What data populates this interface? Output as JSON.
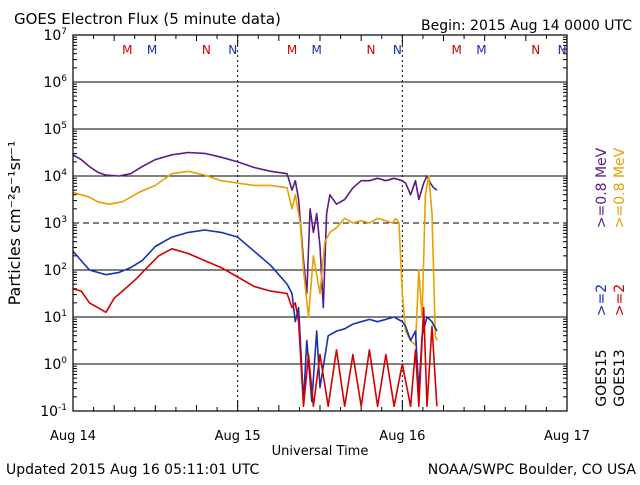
{
  "chart_data": {
    "type": "line",
    "title": "GOES Electron Flux (5 minute data)",
    "begin_label": "Begin: 2015 Aug 14 0000 UTC",
    "xlabel": "Universal Time",
    "ylabel": "Particles cm⁻²s⁻¹sr⁻¹",
    "x_unit": "days since 2015 Aug 14 0000 UTC",
    "xlim": [
      0,
      3
    ],
    "x_ticks": [
      {
        "x": 0,
        "label": "Aug 14"
      },
      {
        "x": 1,
        "label": "Aug 15"
      },
      {
        "x": 2,
        "label": "Aug 16"
      },
      {
        "x": 3,
        "label": "Aug 17"
      }
    ],
    "y_scale": "log",
    "ylim_log10": [
      -1,
      7
    ],
    "y_ticks": [
      {
        "base": "10",
        "exp": "7",
        "log10": 7
      },
      {
        "base": "10",
        "exp": "6",
        "log10": 6
      },
      {
        "base": "10",
        "exp": "5",
        "log10": 5
      },
      {
        "base": "10",
        "exp": "4",
        "log10": 4
      },
      {
        "base": "10",
        "exp": "3",
        "log10": 3
      },
      {
        "base": "10",
        "exp": "2",
        "log10": 2
      },
      {
        "base": "10",
        "exp": "1",
        "log10": 1
      },
      {
        "base": "10",
        "exp": "0",
        "log10": 0
      },
      {
        "base": "10",
        "exp": "-1",
        "log10": -1
      }
    ],
    "solid_gridlines_log10": [
      6,
      5,
      4,
      2,
      1,
      0
    ],
    "dashed_threshold_log10": 3,
    "day_boundaries": [
      1,
      2
    ],
    "markers": [
      {
        "x": 0.33,
        "label": "M",
        "color": "#cc0000"
      },
      {
        "x": 0.48,
        "label": "M",
        "color": "#1a2fb0"
      },
      {
        "x": 0.81,
        "label": "N",
        "color": "#cc0000"
      },
      {
        "x": 0.97,
        "label": "N",
        "color": "#1a2fb0"
      },
      {
        "x": 1.33,
        "label": "M",
        "color": "#cc0000"
      },
      {
        "x": 1.48,
        "label": "M",
        "color": "#1a2fb0"
      },
      {
        "x": 1.81,
        "label": "N",
        "color": "#cc0000"
      },
      {
        "x": 1.97,
        "label": "N",
        "color": "#1a2fb0"
      },
      {
        "x": 2.33,
        "label": "M",
        "color": "#cc0000"
      },
      {
        "x": 2.48,
        "label": "M",
        "color": "#1a2fb0"
      },
      {
        "x": 2.81,
        "label": "N",
        "color": "#cc0000"
      },
      {
        "x": 2.97,
        "label": "N",
        "color": "#1a2fb0"
      }
    ],
    "series": [
      {
        "name": "GOES15 >=0.8 MeV",
        "color": "#5b1b86",
        "points": [
          [
            0,
            4.45
          ],
          [
            0.05,
            4.35
          ],
          [
            0.1,
            4.2
          ],
          [
            0.15,
            4.08
          ],
          [
            0.2,
            4.02
          ],
          [
            0.28,
            4.0
          ],
          [
            0.35,
            4.05
          ],
          [
            0.42,
            4.2
          ],
          [
            0.5,
            4.35
          ],
          [
            0.6,
            4.45
          ],
          [
            0.7,
            4.5
          ],
          [
            0.8,
            4.48
          ],
          [
            0.9,
            4.4
          ],
          [
            1.0,
            4.3
          ],
          [
            1.1,
            4.18
          ],
          [
            1.2,
            4.1
          ],
          [
            1.3,
            4.05
          ],
          [
            1.33,
            3.7
          ],
          [
            1.35,
            3.9
          ],
          [
            1.37,
            3.5
          ],
          [
            1.4,
            2.2
          ],
          [
            1.42,
            1.5
          ],
          [
            1.44,
            3.3
          ],
          [
            1.46,
            2.8
          ],
          [
            1.48,
            3.2
          ],
          [
            1.5,
            2.5
          ],
          [
            1.52,
            1.2
          ],
          [
            1.54,
            3.2
          ],
          [
            1.56,
            3.6
          ],
          [
            1.6,
            3.4
          ],
          [
            1.65,
            3.5
          ],
          [
            1.7,
            3.75
          ],
          [
            1.75,
            3.9
          ],
          [
            1.8,
            3.9
          ],
          [
            1.85,
            3.95
          ],
          [
            1.9,
            3.9
          ],
          [
            1.95,
            3.95
          ],
          [
            2.0,
            3.9
          ],
          [
            2.02,
            3.85
          ],
          [
            2.05,
            3.6
          ],
          [
            2.08,
            3.9
          ],
          [
            2.1,
            3.5
          ],
          [
            2.13,
            3.85
          ],
          [
            2.15,
            4.0
          ],
          [
            2.17,
            3.85
          ],
          [
            2.19,
            3.75
          ],
          [
            2.21,
            3.7
          ]
        ]
      },
      {
        "name": "GOES13 >=0.8 MeV",
        "color": "#e8a000",
        "points": [
          [
            0,
            3.65
          ],
          [
            0.05,
            3.6
          ],
          [
            0.1,
            3.55
          ],
          [
            0.15,
            3.45
          ],
          [
            0.22,
            3.4
          ],
          [
            0.3,
            3.45
          ],
          [
            0.4,
            3.65
          ],
          [
            0.5,
            3.8
          ],
          [
            0.6,
            4.05
          ],
          [
            0.7,
            4.1
          ],
          [
            0.8,
            4.02
          ],
          [
            0.9,
            3.9
          ],
          [
            1.0,
            3.85
          ],
          [
            1.1,
            3.8
          ],
          [
            1.2,
            3.8
          ],
          [
            1.3,
            3.75
          ],
          [
            1.33,
            3.3
          ],
          [
            1.35,
            3.6
          ],
          [
            1.38,
            3.0
          ],
          [
            1.4,
            2.0
          ],
          [
            1.43,
            1.0
          ],
          [
            1.46,
            2.3
          ],
          [
            1.5,
            1.5
          ],
          [
            1.53,
            2.6
          ],
          [
            1.56,
            2.8
          ],
          [
            1.6,
            2.9
          ],
          [
            1.65,
            3.1
          ],
          [
            1.7,
            3.0
          ],
          [
            1.75,
            3.05
          ],
          [
            1.8,
            3.0
          ],
          [
            1.85,
            3.1
          ],
          [
            1.9,
            3.05
          ],
          [
            1.94,
            3.0
          ],
          [
            1.96,
            3.1
          ],
          [
            1.98,
            3.0
          ],
          [
            2.0,
            1.5
          ],
          [
            2.02,
            0.7
          ],
          [
            2.05,
            0.5
          ],
          [
            2.08,
            0.4
          ],
          [
            2.1,
            2.0
          ],
          [
            2.12,
            1.0
          ],
          [
            2.14,
            3.6
          ],
          [
            2.16,
            4.0
          ],
          [
            2.18,
            3.2
          ],
          [
            2.2,
            0.6
          ],
          [
            2.21,
            0.5
          ]
        ]
      },
      {
        "name": "GOES15 >=2 MeV",
        "color": "#1432b4",
        "points": [
          [
            0,
            2.4
          ],
          [
            0.05,
            2.2
          ],
          [
            0.1,
            2.0
          ],
          [
            0.15,
            1.95
          ],
          [
            0.2,
            1.9
          ],
          [
            0.28,
            1.95
          ],
          [
            0.35,
            2.05
          ],
          [
            0.42,
            2.2
          ],
          [
            0.5,
            2.5
          ],
          [
            0.6,
            2.7
          ],
          [
            0.7,
            2.8
          ],
          [
            0.8,
            2.85
          ],
          [
            0.9,
            2.8
          ],
          [
            1.0,
            2.7
          ],
          [
            1.1,
            2.4
          ],
          [
            1.2,
            2.1
          ],
          [
            1.3,
            1.7
          ],
          [
            1.33,
            1.5
          ],
          [
            1.35,
            0.9
          ],
          [
            1.37,
            1.2
          ],
          [
            1.4,
            -0.8
          ],
          [
            1.42,
            0.5
          ],
          [
            1.45,
            -0.8
          ],
          [
            1.48,
            0.7
          ],
          [
            1.5,
            -0.5
          ],
          [
            1.55,
            0.6
          ],
          [
            1.6,
            0.7
          ],
          [
            1.65,
            0.75
          ],
          [
            1.7,
            0.85
          ],
          [
            1.75,
            0.9
          ],
          [
            1.8,
            0.95
          ],
          [
            1.85,
            0.9
          ],
          [
            1.9,
            0.95
          ],
          [
            1.95,
            1.0
          ],
          [
            2.0,
            0.9
          ],
          [
            2.02,
            0.8
          ],
          [
            2.05,
            0.5
          ],
          [
            2.08,
            0.7
          ],
          [
            2.1,
            -0.6
          ],
          [
            2.12,
            0.6
          ],
          [
            2.15,
            1.0
          ],
          [
            2.18,
            0.9
          ],
          [
            2.21,
            0.7
          ]
        ]
      },
      {
        "name": "GOES13 >=2 MeV",
        "color": "#d40000",
        "points": [
          [
            0,
            1.6
          ],
          [
            0.05,
            1.55
          ],
          [
            0.1,
            1.3
          ],
          [
            0.15,
            1.2
          ],
          [
            0.2,
            1.1
          ],
          [
            0.25,
            1.4
          ],
          [
            0.3,
            1.55
          ],
          [
            0.38,
            1.8
          ],
          [
            0.45,
            2.05
          ],
          [
            0.52,
            2.3
          ],
          [
            0.6,
            2.45
          ],
          [
            0.7,
            2.35
          ],
          [
            0.8,
            2.2
          ],
          [
            0.9,
            2.05
          ],
          [
            1.0,
            1.85
          ],
          [
            1.1,
            1.65
          ],
          [
            1.2,
            1.55
          ],
          [
            1.3,
            1.5
          ],
          [
            1.33,
            1.2
          ],
          [
            1.35,
            1.3
          ],
          [
            1.37,
            0.9
          ],
          [
            1.4,
            -0.9
          ],
          [
            1.43,
            0.2
          ],
          [
            1.46,
            -0.9
          ],
          [
            1.5,
            0.2
          ],
          [
            1.55,
            -0.9
          ],
          [
            1.6,
            0.3
          ],
          [
            1.65,
            -0.9
          ],
          [
            1.7,
            0.2
          ],
          [
            1.75,
            -0.9
          ],
          [
            1.8,
            0.3
          ],
          [
            1.85,
            -0.9
          ],
          [
            1.9,
            0.2
          ],
          [
            1.95,
            -0.9
          ],
          [
            2.0,
            0.0
          ],
          [
            2.05,
            -0.9
          ],
          [
            2.08,
            0.3
          ],
          [
            2.1,
            -0.9
          ],
          [
            2.13,
            1.2
          ],
          [
            2.15,
            -0.9
          ],
          [
            2.18,
            0.8
          ],
          [
            2.21,
            -0.9
          ]
        ]
      }
    ],
    "right_labels": [
      {
        "text": ">=0.8 MeV",
        "color": "#5b1b86"
      },
      {
        "text": ">=0.8 MeV",
        "color": "#e8a000"
      },
      {
        "text": ">=2",
        "color": "#1432b4"
      },
      {
        "text": ">=2",
        "color": "#d40000"
      },
      {
        "text": "GOES15",
        "color": "#000000"
      },
      {
        "text": "GOES13",
        "color": "#000000"
      }
    ],
    "footer_left": "Updated 2015 Aug 16 05:11:01 UTC",
    "footer_right": "NOAA/SWPC Boulder, CO USA"
  }
}
